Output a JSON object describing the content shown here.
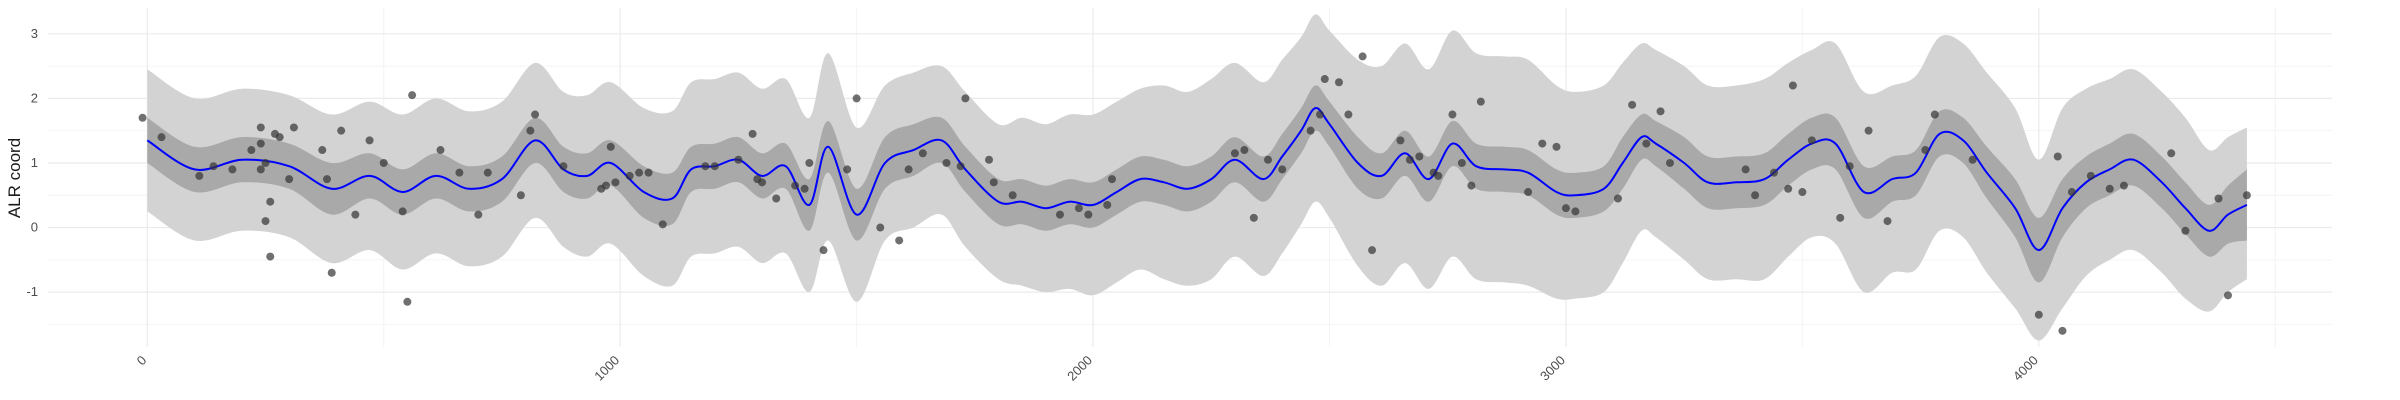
{
  "chart_data": {
    "type": "line",
    "title": "",
    "xlabel": "",
    "ylabel": "ALR coord",
    "xlim": [
      -210,
      4620
    ],
    "ylim": [
      -1.85,
      3.4
    ],
    "x_ticks": [
      0,
      1000,
      2000,
      3000,
      4000
    ],
    "x_tick_labels": [
      "0",
      "1000",
      "2000",
      "3000",
      "4000"
    ],
    "y_ticks": [
      -1,
      0,
      1,
      2,
      3
    ],
    "y_tick_labels": [
      "-1",
      "0",
      "1",
      "2",
      "3"
    ],
    "grid": true,
    "legend": "none",
    "colors": {
      "line": "#0000ff",
      "inner_band": "#a9a9a9",
      "outer_band": "#d3d3d3",
      "points": "#333333",
      "grid_major": "#ebebeb",
      "grid_minor": "#f4f4f4"
    },
    "series": [
      {
        "type": "line",
        "x": [
          0,
          100,
          200,
          300,
          390,
          470,
          540,
          610,
          680,
          750,
          820,
          880,
          930,
          980,
          1050,
          1110,
          1150,
          1200,
          1250,
          1300,
          1350,
          1400,
          1440,
          1500,
          1560,
          1620,
          1680,
          1730,
          1800,
          1850,
          1900,
          1950,
          2000,
          2050,
          2100,
          2150,
          2200,
          2250,
          2300,
          2360,
          2400,
          2440,
          2470,
          2500,
          2560,
          2610,
          2660,
          2710,
          2760,
          2810,
          2870,
          2920,
          2980,
          3020,
          3080,
          3120,
          3160,
          3190,
          3250,
          3300,
          3360,
          3420,
          3470,
          3520,
          3570,
          3630,
          3690,
          3740,
          3790,
          3840,
          3890,
          3950,
          4000,
          4050,
          4100,
          4150,
          4200,
          4260,
          4310,
          4360,
          4400,
          4440
        ],
        "y": [
          1.35,
          0.9,
          1.05,
          0.95,
          0.6,
          0.8,
          0.55,
          0.8,
          0.6,
          0.75,
          1.35,
          0.9,
          0.8,
          1.0,
          0.55,
          0.45,
          0.9,
          0.95,
          1.05,
          0.8,
          0.95,
          0.35,
          1.25,
          0.2,
          1.0,
          1.2,
          1.35,
          0.9,
          0.4,
          0.4,
          0.3,
          0.4,
          0.35,
          0.55,
          0.75,
          0.7,
          0.6,
          0.75,
          1.05,
          0.75,
          1.1,
          1.5,
          1.85,
          1.6,
          1.0,
          0.8,
          1.15,
          0.75,
          1.3,
          0.95,
          0.9,
          0.85,
          0.55,
          0.5,
          0.6,
          1.0,
          1.4,
          1.3,
          1.0,
          0.7,
          0.7,
          0.75,
          1.05,
          1.3,
          1.3,
          0.55,
          0.75,
          0.85,
          1.45,
          1.35,
          0.85,
          0.3,
          -0.35,
          0.3,
          0.7,
          0.9,
          1.05,
          0.7,
          0.3,
          -0.05,
          0.2,
          0.35
        ]
      },
      {
        "type": "band",
        "name_hint": "inner",
        "x": [
          0,
          100,
          200,
          300,
          390,
          470,
          540,
          610,
          680,
          750,
          820,
          880,
          930,
          980,
          1050,
          1110,
          1150,
          1200,
          1250,
          1300,
          1350,
          1400,
          1440,
          1500,
          1560,
          1620,
          1680,
          1730,
          1800,
          1850,
          1900,
          1950,
          2000,
          2050,
          2100,
          2150,
          2200,
          2250,
          2300,
          2360,
          2400,
          2440,
          2470,
          2500,
          2560,
          2610,
          2660,
          2710,
          2760,
          2810,
          2870,
          2920,
          2980,
          3020,
          3080,
          3120,
          3160,
          3190,
          3250,
          3300,
          3360,
          3420,
          3470,
          3520,
          3570,
          3630,
          3690,
          3740,
          3790,
          3840,
          3890,
          3950,
          4000,
          4050,
          4100,
          4150,
          4200,
          4260,
          4310,
          4360,
          4400,
          4440
        ],
        "lower": [
          1.0,
          0.55,
          0.7,
          0.6,
          0.2,
          0.45,
          0.2,
          0.45,
          0.25,
          0.4,
          1.0,
          0.55,
          0.45,
          0.65,
          0.15,
          0.05,
          0.55,
          0.6,
          0.7,
          0.45,
          0.6,
          -0.05,
          0.85,
          -0.2,
          0.6,
          0.8,
          1.0,
          0.55,
          0.05,
          0.05,
          -0.05,
          0.05,
          0.0,
          0.2,
          0.4,
          0.35,
          0.25,
          0.4,
          0.7,
          0.4,
          0.75,
          1.15,
          1.5,
          1.25,
          0.6,
          0.45,
          0.8,
          0.4,
          0.95,
          0.6,
          0.55,
          0.5,
          0.2,
          0.15,
          0.25,
          0.6,
          1.05,
          0.95,
          0.6,
          0.3,
          0.3,
          0.35,
          0.65,
          0.9,
          0.9,
          0.15,
          0.4,
          0.5,
          1.1,
          1.0,
          0.45,
          -0.15,
          -0.85,
          -0.15,
          0.3,
          0.5,
          0.65,
          0.3,
          -0.1,
          -0.45,
          -0.25,
          -0.2
        ],
        "upper": [
          1.7,
          1.25,
          1.4,
          1.3,
          1.0,
          1.15,
          0.9,
          1.15,
          0.95,
          1.1,
          1.7,
          1.25,
          1.15,
          1.35,
          0.95,
          0.85,
          1.25,
          1.3,
          1.4,
          1.15,
          1.3,
          0.75,
          1.65,
          0.6,
          1.4,
          1.6,
          1.7,
          1.25,
          0.75,
          0.75,
          0.65,
          0.75,
          0.7,
          0.9,
          1.1,
          1.05,
          0.95,
          1.1,
          1.4,
          1.1,
          1.45,
          1.85,
          2.2,
          1.95,
          1.4,
          1.15,
          1.5,
          1.1,
          1.65,
          1.3,
          1.25,
          1.2,
          0.9,
          0.85,
          0.95,
          1.4,
          1.75,
          1.65,
          1.4,
          1.1,
          1.1,
          1.15,
          1.45,
          1.7,
          1.7,
          0.95,
          1.1,
          1.2,
          1.8,
          1.7,
          1.25,
          0.75,
          0.15,
          0.75,
          1.1,
          1.3,
          1.45,
          1.1,
          0.7,
          0.35,
          0.65,
          0.9
        ]
      },
      {
        "type": "band",
        "name_hint": "outer",
        "x": [
          0,
          100,
          200,
          300,
          390,
          470,
          540,
          610,
          680,
          750,
          820,
          880,
          930,
          980,
          1050,
          1110,
          1150,
          1200,
          1250,
          1300,
          1350,
          1400,
          1440,
          1500,
          1560,
          1620,
          1680,
          1730,
          1800,
          1850,
          1900,
          1950,
          2000,
          2050,
          2100,
          2150,
          2200,
          2250,
          2300,
          2360,
          2400,
          2440,
          2470,
          2500,
          2560,
          2610,
          2660,
          2710,
          2760,
          2810,
          2870,
          2920,
          2980,
          3020,
          3080,
          3120,
          3160,
          3190,
          3250,
          3300,
          3360,
          3420,
          3470,
          3520,
          3570,
          3630,
          3690,
          3740,
          3790,
          3840,
          3890,
          3950,
          4000,
          4050,
          4100,
          4150,
          4200,
          4260,
          4310,
          4360,
          4400,
          4440
        ],
        "lower": [
          0.25,
          -0.2,
          -0.05,
          -0.15,
          -0.55,
          -0.35,
          -0.65,
          -0.4,
          -0.6,
          -0.45,
          0.15,
          -0.3,
          -0.45,
          -0.25,
          -0.75,
          -0.9,
          -0.45,
          -0.4,
          -0.3,
          -0.55,
          -0.4,
          -1.0,
          -0.2,
          -1.15,
          -0.2,
          0.0,
          0.2,
          -0.3,
          -0.8,
          -0.9,
          -1.0,
          -0.95,
          -1.05,
          -0.85,
          -0.65,
          -0.8,
          -0.9,
          -0.8,
          -0.45,
          -0.75,
          -0.4,
          0.05,
          0.4,
          0.15,
          -0.6,
          -0.9,
          -0.55,
          -0.95,
          -0.45,
          -0.8,
          -0.85,
          -0.9,
          -1.1,
          -1.1,
          -1.0,
          -0.55,
          -0.05,
          -0.15,
          -0.5,
          -0.8,
          -0.8,
          -0.8,
          -0.45,
          -0.15,
          -0.25,
          -1.0,
          -0.7,
          -0.65,
          -0.05,
          -0.15,
          -0.7,
          -1.25,
          -1.75,
          -1.25,
          -0.75,
          -0.5,
          -0.35,
          -0.7,
          -1.1,
          -1.3,
          -1.0,
          -0.8
        ],
        "upper": [
          2.45,
          2.0,
          2.15,
          2.05,
          1.75,
          1.95,
          1.75,
          2.0,
          1.8,
          1.95,
          2.55,
          2.1,
          2.05,
          2.25,
          1.85,
          1.8,
          2.25,
          2.3,
          2.4,
          2.15,
          2.3,
          1.7,
          2.7,
          1.55,
          2.2,
          2.4,
          2.5,
          2.1,
          1.6,
          1.7,
          1.6,
          1.75,
          1.75,
          1.95,
          2.15,
          2.2,
          2.1,
          2.3,
          2.55,
          2.25,
          2.6,
          2.95,
          3.3,
          3.05,
          2.6,
          2.5,
          2.85,
          2.45,
          3.05,
          2.7,
          2.65,
          2.6,
          2.2,
          2.1,
          2.2,
          2.55,
          2.85,
          2.75,
          2.5,
          2.2,
          2.2,
          2.3,
          2.55,
          2.75,
          2.85,
          2.1,
          2.2,
          2.35,
          2.95,
          2.85,
          2.4,
          1.85,
          1.05,
          1.85,
          2.15,
          2.3,
          2.45,
          2.1,
          1.7,
          1.2,
          1.4,
          1.55
        ]
      },
      {
        "type": "scatter",
        "points": [
          [
            -10,
            1.7
          ],
          [
            30,
            1.4
          ],
          [
            110,
            0.8
          ],
          [
            140,
            0.95
          ],
          [
            180,
            0.9
          ],
          [
            220,
            1.2
          ],
          [
            240,
            1.55
          ],
          [
            240,
            1.3
          ],
          [
            250,
            1.0
          ],
          [
            240,
            0.9
          ],
          [
            260,
            0.4
          ],
          [
            250,
            0.1
          ],
          [
            260,
            -0.45
          ],
          [
            270,
            1.45
          ],
          [
            280,
            1.4
          ],
          [
            300,
            0.75
          ],
          [
            310,
            1.55
          ],
          [
            370,
            1.2
          ],
          [
            380,
            0.75
          ],
          [
            390,
            -0.7
          ],
          [
            410,
            1.5
          ],
          [
            440,
            0.2
          ],
          [
            470,
            1.35
          ],
          [
            500,
            1.0
          ],
          [
            540,
            0.25
          ],
          [
            550,
            -1.15
          ],
          [
            560,
            2.05
          ],
          [
            620,
            1.2
          ],
          [
            660,
            0.85
          ],
          [
            700,
            0.2
          ],
          [
            720,
            0.85
          ],
          [
            790,
            0.5
          ],
          [
            810,
            1.5
          ],
          [
            820,
            1.75
          ],
          [
            880,
            0.95
          ],
          [
            960,
            0.6
          ],
          [
            970,
            0.65
          ],
          [
            980,
            1.25
          ],
          [
            990,
            0.7
          ],
          [
            1020,
            0.8
          ],
          [
            1040,
            0.85
          ],
          [
            1060,
            0.85
          ],
          [
            1090,
            0.05
          ],
          [
            1180,
            0.95
          ],
          [
            1200,
            0.95
          ],
          [
            1250,
            1.05
          ],
          [
            1280,
            1.45
          ],
          [
            1290,
            0.75
          ],
          [
            1300,
            0.7
          ],
          [
            1330,
            0.45
          ],
          [
            1370,
            0.65
          ],
          [
            1390,
            0.6
          ],
          [
            1400,
            1.0
          ],
          [
            1430,
            -0.35
          ],
          [
            1480,
            0.9
          ],
          [
            1500,
            2.0
          ],
          [
            1550,
            0.0
          ],
          [
            1590,
            -0.2
          ],
          [
            1610,
            0.9
          ],
          [
            1640,
            1.15
          ],
          [
            1690,
            1.0
          ],
          [
            1720,
            0.95
          ],
          [
            1730,
            2.0
          ],
          [
            1780,
            1.05
          ],
          [
            1790,
            0.7
          ],
          [
            1830,
            0.5
          ],
          [
            1930,
            0.2
          ],
          [
            1970,
            0.3
          ],
          [
            1990,
            0.2
          ],
          [
            2030,
            0.35
          ],
          [
            2040,
            0.75
          ],
          [
            2300,
            1.15
          ],
          [
            2320,
            1.2
          ],
          [
            2340,
            0.15
          ],
          [
            2370,
            1.05
          ],
          [
            2400,
            0.9
          ],
          [
            2460,
            1.5
          ],
          [
            2480,
            1.75
          ],
          [
            2490,
            2.3
          ],
          [
            2520,
            2.25
          ],
          [
            2540,
            1.75
          ],
          [
            2570,
            2.65
          ],
          [
            2590,
            -0.35
          ],
          [
            2650,
            1.35
          ],
          [
            2670,
            1.05
          ],
          [
            2690,
            1.1
          ],
          [
            2720,
            0.85
          ],
          [
            2730,
            0.8
          ],
          [
            2760,
            1.75
          ],
          [
            2780,
            1.0
          ],
          [
            2800,
            0.65
          ],
          [
            2820,
            1.95
          ],
          [
            2920,
            0.55
          ],
          [
            2950,
            1.3
          ],
          [
            2980,
            1.25
          ],
          [
            3000,
            0.3
          ],
          [
            3020,
            0.25
          ],
          [
            3110,
            0.45
          ],
          [
            3140,
            1.9
          ],
          [
            3170,
            1.3
          ],
          [
            3200,
            1.8
          ],
          [
            3220,
            1.0
          ],
          [
            3380,
            0.9
          ],
          [
            3400,
            0.5
          ],
          [
            3440,
            0.85
          ],
          [
            3470,
            0.6
          ],
          [
            3480,
            2.2
          ],
          [
            3500,
            0.55
          ],
          [
            3520,
            1.35
          ],
          [
            3580,
            0.15
          ],
          [
            3600,
            0.95
          ],
          [
            3640,
            1.5
          ],
          [
            3680,
            0.1
          ],
          [
            3760,
            1.2
          ],
          [
            3780,
            1.75
          ],
          [
            3860,
            1.05
          ],
          [
            4000,
            -1.35
          ],
          [
            4040,
            1.1
          ],
          [
            4050,
            -1.6
          ],
          [
            4070,
            0.55
          ],
          [
            4110,
            0.8
          ],
          [
            4150,
            0.6
          ],
          [
            4180,
            0.65
          ],
          [
            4280,
            1.15
          ],
          [
            4310,
            -0.05
          ],
          [
            4380,
            0.45
          ],
          [
            4400,
            -1.05
          ],
          [
            4440,
            0.5
          ]
        ]
      }
    ]
  }
}
